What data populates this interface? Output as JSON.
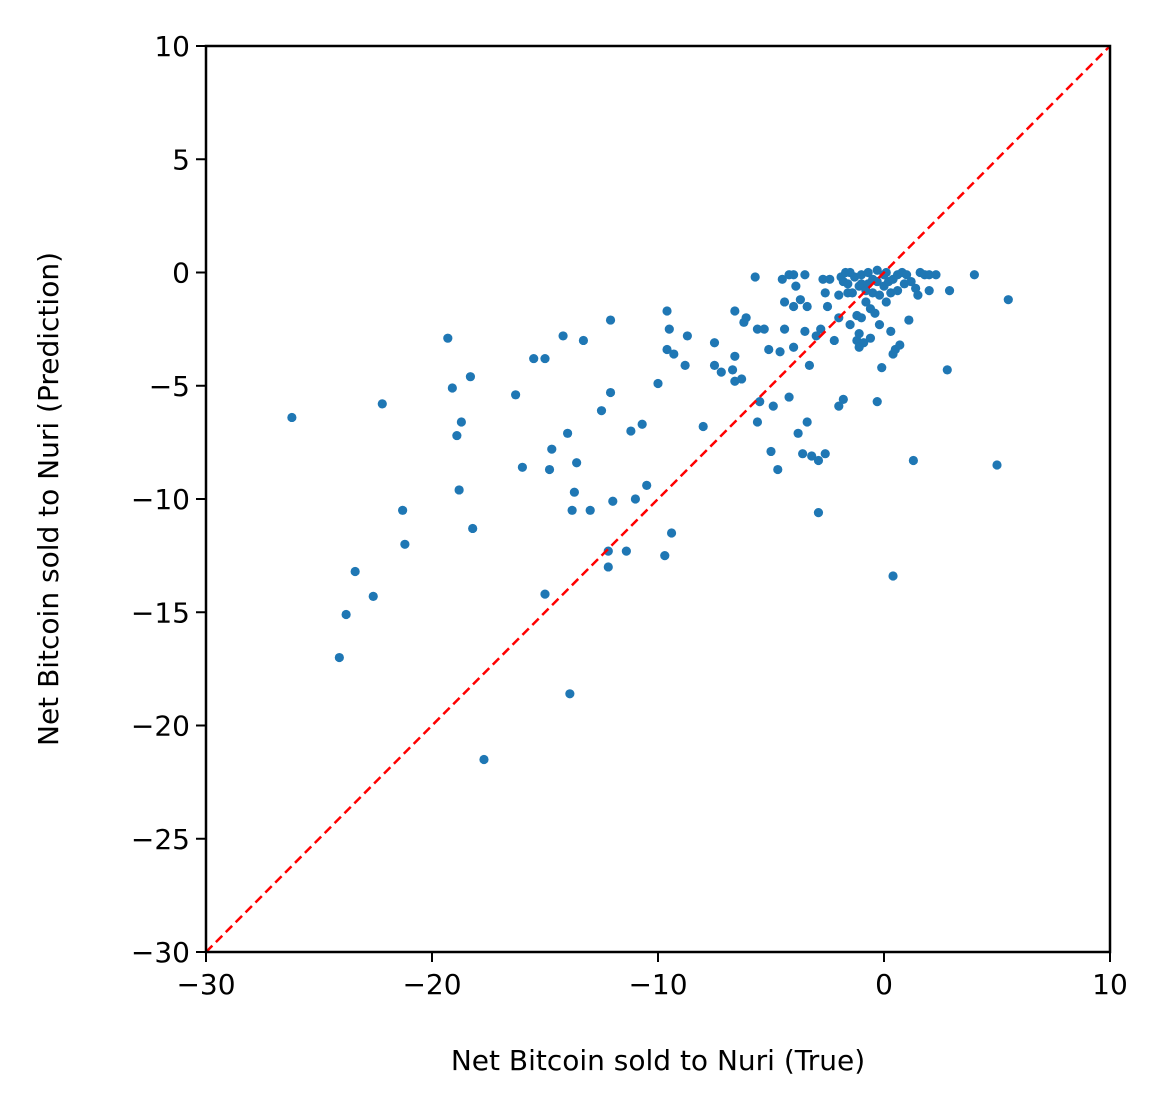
{
  "chart_data": {
    "type": "scatter",
    "title": "",
    "xlabel": "Net Bitcoin sold to Nuri (True)",
    "ylabel": "Net Bitcoin sold to Nuri (Prediction)",
    "xlim": [
      -30,
      10
    ],
    "ylim": [
      -30,
      10
    ],
    "xticks": [
      "−30",
      "−20",
      "−10",
      "0",
      "10"
    ],
    "yticks": [
      "10",
      "5",
      "0",
      "−5",
      "−10",
      "−15",
      "−20",
      "−25",
      "−30"
    ],
    "grid": false,
    "colors": {
      "points": "#1f77b4",
      "reference_line": "#ff0000"
    },
    "reference_line": {
      "style": "dashed",
      "from": [
        -30,
        -30
      ],
      "to": [
        10,
        10
      ]
    },
    "points": [
      [
        -26.2,
        -6.4
      ],
      [
        -24.1,
        -17.0
      ],
      [
        -23.8,
        -15.1
      ],
      [
        -23.4,
        -13.2
      ],
      [
        -22.6,
        -14.3
      ],
      [
        -22.2,
        -5.8
      ],
      [
        -21.3,
        -10.5
      ],
      [
        -21.2,
        -12.0
      ],
      [
        -19.3,
        -2.9
      ],
      [
        -19.1,
        -5.1
      ],
      [
        -18.9,
        -7.2
      ],
      [
        -18.8,
        -9.6
      ],
      [
        -18.7,
        -6.6
      ],
      [
        -18.3,
        -4.6
      ],
      [
        -18.2,
        -11.3
      ],
      [
        -17.7,
        -21.5
      ],
      [
        -16.3,
        -5.4
      ],
      [
        -16.0,
        -8.6
      ],
      [
        -15.5,
        -3.8
      ],
      [
        -15.0,
        -3.8
      ],
      [
        -15.0,
        -14.2
      ],
      [
        -14.8,
        -8.7
      ],
      [
        -14.7,
        -7.8
      ],
      [
        -14.2,
        -2.8
      ],
      [
        -14.0,
        -7.1
      ],
      [
        -13.9,
        -18.6
      ],
      [
        -13.8,
        -10.5
      ],
      [
        -13.7,
        -9.7
      ],
      [
        -13.6,
        -8.4
      ],
      [
        -13.3,
        -3.0
      ],
      [
        -13.0,
        -10.5
      ],
      [
        -12.5,
        -6.1
      ],
      [
        -12.2,
        -12.3
      ],
      [
        -12.2,
        -13.0
      ],
      [
        -12.1,
        -2.1
      ],
      [
        -12.1,
        -5.3
      ],
      [
        -12.0,
        -10.1
      ],
      [
        -11.4,
        -12.3
      ],
      [
        -11.2,
        -7.0
      ],
      [
        -11.0,
        -10.0
      ],
      [
        -10.7,
        -6.7
      ],
      [
        -10.5,
        -9.4
      ],
      [
        -10.0,
        -4.9
      ],
      [
        -9.7,
        -12.5
      ],
      [
        -9.6,
        -1.7
      ],
      [
        -9.6,
        -3.4
      ],
      [
        -9.5,
        -2.5
      ],
      [
        -9.4,
        -11.5
      ],
      [
        -9.3,
        -3.6
      ],
      [
        -8.8,
        -4.1
      ],
      [
        -8.7,
        -2.8
      ],
      [
        -8.0,
        -6.8
      ],
      [
        -7.5,
        -3.1
      ],
      [
        -7.5,
        -4.1
      ],
      [
        -7.2,
        -4.4
      ],
      [
        -6.7,
        -4.3
      ],
      [
        -6.6,
        -1.7
      ],
      [
        -6.6,
        -3.7
      ],
      [
        -6.6,
        -4.8
      ],
      [
        -6.3,
        -4.7
      ],
      [
        -6.2,
        -2.2
      ],
      [
        -6.1,
        -2.0
      ],
      [
        -5.7,
        -0.2
      ],
      [
        -5.6,
        -2.5
      ],
      [
        -5.6,
        -6.6
      ],
      [
        -5.5,
        -5.7
      ],
      [
        -5.3,
        -2.5
      ],
      [
        -5.1,
        -3.4
      ],
      [
        -5.0,
        -7.9
      ],
      [
        -4.9,
        -5.9
      ],
      [
        -4.7,
        -8.7
      ],
      [
        -4.6,
        -3.5
      ],
      [
        -4.5,
        -0.3
      ],
      [
        -4.4,
        -1.3
      ],
      [
        -4.4,
        -2.5
      ],
      [
        -4.2,
        -0.1
      ],
      [
        -4.2,
        -5.5
      ],
      [
        -4.0,
        -0.1
      ],
      [
        -4.0,
        -1.5
      ],
      [
        -4.0,
        -3.3
      ],
      [
        -3.9,
        -0.6
      ],
      [
        -3.8,
        -7.1
      ],
      [
        -3.7,
        -1.2
      ],
      [
        -3.6,
        -8.0
      ],
      [
        -3.5,
        -0.1
      ],
      [
        -3.5,
        -2.6
      ],
      [
        -3.4,
        -1.5
      ],
      [
        -3.4,
        -6.6
      ],
      [
        -3.3,
        -4.1
      ],
      [
        -3.2,
        -8.1
      ],
      [
        -3.0,
        -2.8
      ],
      [
        -2.9,
        -8.3
      ],
      [
        -2.9,
        -10.6
      ],
      [
        -2.8,
        -2.5
      ],
      [
        -2.7,
        -0.3
      ],
      [
        -2.6,
        -0.9
      ],
      [
        -2.6,
        -8.0
      ],
      [
        -2.5,
        -1.5
      ],
      [
        -2.4,
        -0.3
      ],
      [
        -2.2,
        -3.0
      ],
      [
        -2.0,
        -1.0
      ],
      [
        -2.0,
        -2.0
      ],
      [
        -2.0,
        -5.9
      ],
      [
        -1.9,
        -0.2
      ],
      [
        -1.8,
        -0.4
      ],
      [
        -1.8,
        -5.6
      ],
      [
        -1.7,
        0.0
      ],
      [
        -1.6,
        -0.5
      ],
      [
        -1.6,
        -0.9
      ],
      [
        -1.5,
        -2.3
      ],
      [
        -1.5,
        0.0
      ],
      [
        -1.4,
        -0.9
      ],
      [
        -1.3,
        -0.2
      ],
      [
        -1.2,
        -1.9
      ],
      [
        -1.2,
        -3.0
      ],
      [
        -1.1,
        -0.6
      ],
      [
        -1.1,
        -2.7
      ],
      [
        -1.1,
        -3.3
      ],
      [
        -1.0,
        -0.1
      ],
      [
        -1.0,
        -0.5
      ],
      [
        -1.0,
        -2.0
      ],
      [
        -0.9,
        -3.1
      ],
      [
        -0.8,
        -0.8
      ],
      [
        -0.8,
        -1.3
      ],
      [
        -0.7,
        0.0
      ],
      [
        -0.7,
        -0.5
      ],
      [
        -0.6,
        -1.6
      ],
      [
        -0.6,
        -2.9
      ],
      [
        -0.5,
        -0.3
      ],
      [
        -0.5,
        -0.9
      ],
      [
        -0.4,
        -1.8
      ],
      [
        -0.3,
        0.1
      ],
      [
        -0.3,
        -0.4
      ],
      [
        -0.3,
        -5.7
      ],
      [
        -0.2,
        -1.0
      ],
      [
        -0.2,
        -2.3
      ],
      [
        -0.1,
        -4.2
      ],
      [
        0.0,
        -0.1
      ],
      [
        0.0,
        -0.6
      ],
      [
        0.1,
        0.0
      ],
      [
        0.1,
        -1.3
      ],
      [
        0.2,
        -0.4
      ],
      [
        0.3,
        -0.9
      ],
      [
        0.3,
        -2.6
      ],
      [
        0.4,
        -0.3
      ],
      [
        0.4,
        -3.6
      ],
      [
        0.4,
        -13.4
      ],
      [
        0.5,
        -3.4
      ],
      [
        0.6,
        -0.1
      ],
      [
        0.6,
        -0.8
      ],
      [
        0.7,
        -3.2
      ],
      [
        0.8,
        0.0
      ],
      [
        0.9,
        -0.5
      ],
      [
        1.0,
        -0.1
      ],
      [
        1.1,
        -2.1
      ],
      [
        1.2,
        -0.4
      ],
      [
        1.3,
        -8.3
      ],
      [
        1.4,
        -0.7
      ],
      [
        1.5,
        -1.0
      ],
      [
        1.6,
        0.0
      ],
      [
        1.8,
        -0.1
      ],
      [
        2.0,
        -0.8
      ],
      [
        2.0,
        -0.1
      ],
      [
        2.3,
        -0.1
      ],
      [
        2.8,
        -4.3
      ],
      [
        2.9,
        -0.8
      ],
      [
        4.0,
        -0.1
      ],
      [
        5.0,
        -8.5
      ],
      [
        5.5,
        -1.2
      ]
    ]
  }
}
